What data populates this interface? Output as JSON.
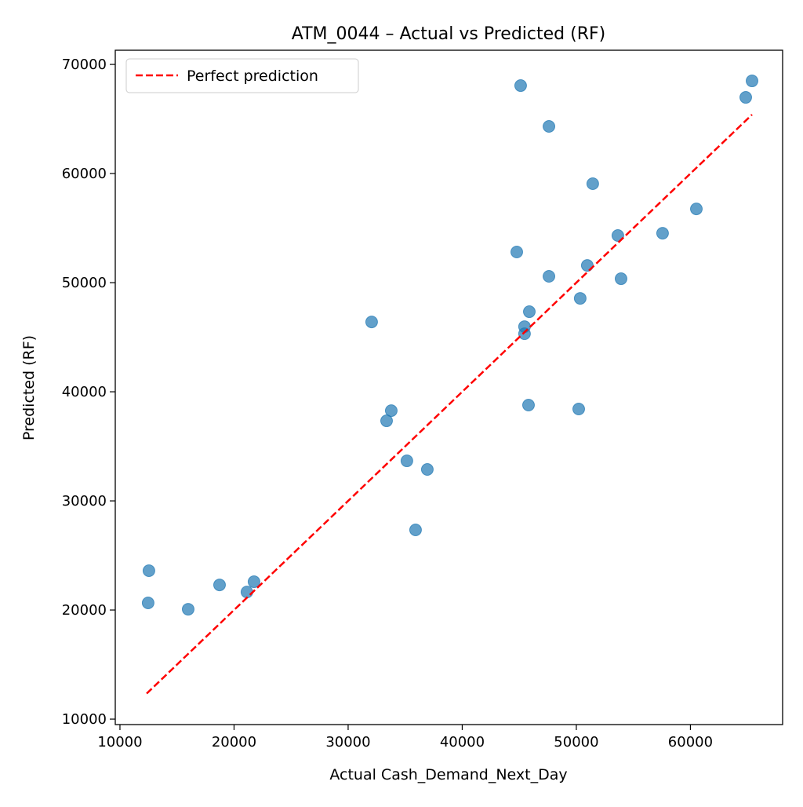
{
  "chart_data": {
    "type": "scatter",
    "title": "ATM_0044 – Actual vs Predicted (RF)",
    "xlabel": "Actual Cash_Demand_Next_Day",
    "ylabel": "Predicted (RF)",
    "xlim": [
      9590,
      68080
    ],
    "ylim": [
      9500,
      71300
    ],
    "xticks": [
      10000,
      20000,
      30000,
      40000,
      50000,
      60000
    ],
    "yticks": [
      10000,
      20000,
      30000,
      40000,
      50000,
      60000,
      70000
    ],
    "grid": false,
    "legend": {
      "placement": "top-left",
      "entries": [
        "Perfect prediction"
      ]
    },
    "colors": {
      "points": "#1f77b4",
      "reference_line": "#ff0000"
    },
    "reference_line": {
      "name": "Perfect prediction",
      "style": "dashed",
      "x": [
        12340,
        65400
      ],
      "y": [
        12340,
        65400
      ]
    },
    "points": [
      {
        "x": 12540,
        "y": 23600
      },
      {
        "x": 12470,
        "y": 20650
      },
      {
        "x": 15980,
        "y": 20070
      },
      {
        "x": 18730,
        "y": 22300
      },
      {
        "x": 21130,
        "y": 21650
      },
      {
        "x": 21750,
        "y": 22590
      },
      {
        "x": 32060,
        "y": 46400
      },
      {
        "x": 33370,
        "y": 37340
      },
      {
        "x": 33780,
        "y": 38270
      },
      {
        "x": 35150,
        "y": 33670
      },
      {
        "x": 36940,
        "y": 32880
      },
      {
        "x": 35910,
        "y": 27340
      },
      {
        "x": 45120,
        "y": 68060
      },
      {
        "x": 47600,
        "y": 64320
      },
      {
        "x": 51440,
        "y": 59070
      },
      {
        "x": 44780,
        "y": 52810
      },
      {
        "x": 47600,
        "y": 50580
      },
      {
        "x": 50960,
        "y": 51580
      },
      {
        "x": 50340,
        "y": 48560
      },
      {
        "x": 45880,
        "y": 47340
      },
      {
        "x": 45460,
        "y": 45970
      },
      {
        "x": 45460,
        "y": 45320
      },
      {
        "x": 45810,
        "y": 38780
      },
      {
        "x": 50210,
        "y": 38420
      },
      {
        "x": 53640,
        "y": 54320
      },
      {
        "x": 53920,
        "y": 50360
      },
      {
        "x": 57560,
        "y": 54530
      },
      {
        "x": 60520,
        "y": 56760
      },
      {
        "x": 64850,
        "y": 66980
      },
      {
        "x": 65400,
        "y": 68490
      }
    ]
  }
}
